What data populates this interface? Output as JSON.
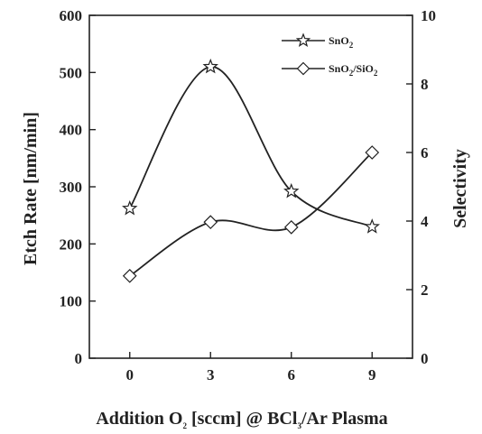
{
  "chart_data": {
    "type": "line",
    "x": [
      0,
      3,
      6,
      9
    ],
    "xlim": [
      -1.5,
      10.5
    ],
    "xticks": [
      "0",
      "3",
      "6",
      "9"
    ],
    "xlabel": {
      "parts": [
        "Addition O",
        "2",
        " [sccm] @ BCl",
        "3",
        "/Ar Plasma"
      ]
    },
    "ylabel_left": "Etch Rate [nm/min]",
    "ylim_left": [
      0,
      600
    ],
    "yticks_left": [
      "0",
      "100",
      "200",
      "300",
      "400",
      "500",
      "600"
    ],
    "ylabel_right": "Selectivity",
    "ylim_right": [
      0,
      10
    ],
    "yticks_right": [
      "0",
      "2",
      "4",
      "6",
      "8",
      "10"
    ],
    "legend_position": "top-right",
    "series": [
      {
        "name": "SnO2",
        "legend_parts": [
          "SnO",
          "2"
        ],
        "axis": "left",
        "marker": "star",
        "values": [
          262,
          510,
          292,
          230
        ]
      },
      {
        "name": "SnO2/SiO2",
        "legend_parts": [
          "SnO",
          "2",
          "/SiO",
          "2"
        ],
        "axis": "right",
        "marker": "diamond",
        "values": [
          2.4,
          3.97,
          3.82,
          6.0
        ]
      }
    ]
  }
}
